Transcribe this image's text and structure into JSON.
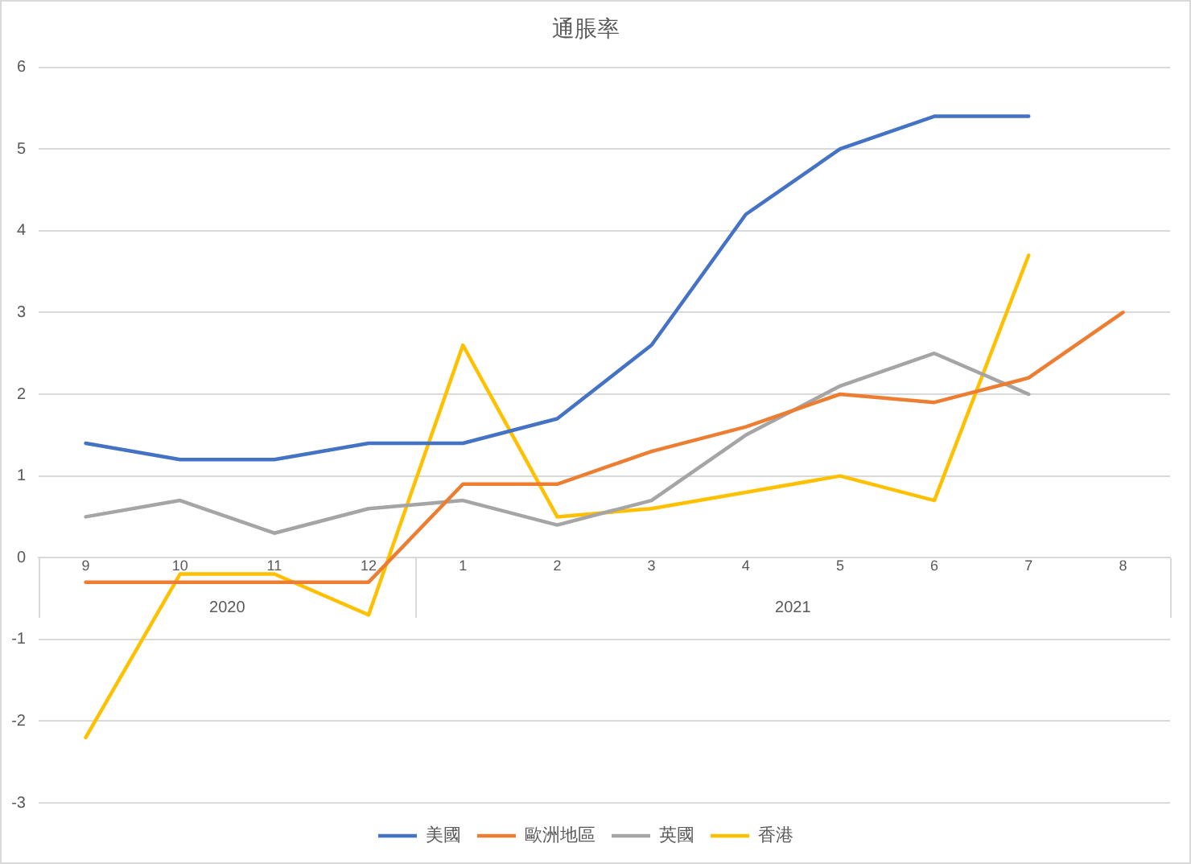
{
  "chart_data": {
    "type": "line",
    "title": "通脹率",
    "categories": [
      "9",
      "10",
      "11",
      "12",
      "1",
      "2",
      "3",
      "4",
      "5",
      "6",
      "7",
      "8"
    ],
    "series": [
      {
        "name": "美國",
        "color": "#4472c4",
        "values": [
          1.4,
          1.2,
          1.2,
          1.4,
          1.4,
          1.7,
          2.6,
          4.2,
          5.0,
          5.4,
          5.4,
          null
        ]
      },
      {
        "name": "歐洲地區",
        "color": "#ed7d31",
        "values": [
          -0.3,
          -0.3,
          -0.3,
          -0.3,
          0.9,
          0.9,
          1.3,
          1.6,
          2.0,
          1.9,
          2.2,
          3.0
        ]
      },
      {
        "name": "英國",
        "color": "#a5a5a5",
        "values": [
          0.5,
          0.7,
          0.3,
          0.6,
          0.7,
          0.4,
          0.7,
          1.5,
          2.1,
          2.5,
          2.0,
          null
        ]
      },
      {
        "name": "香港",
        "color": "#ffc000",
        "values": [
          -2.2,
          -0.2,
          -0.2,
          -0.7,
          2.6,
          0.5,
          0.6,
          0.8,
          1.0,
          0.7,
          3.7,
          null
        ]
      }
    ],
    "ylim": [
      -3,
      6
    ],
    "yticks": [
      -3,
      -2,
      -1,
      0,
      1,
      2,
      3,
      4,
      5,
      6
    ],
    "grid": "y",
    "legend": "bottom",
    "annotations": [
      "2020",
      "2021"
    ]
  }
}
